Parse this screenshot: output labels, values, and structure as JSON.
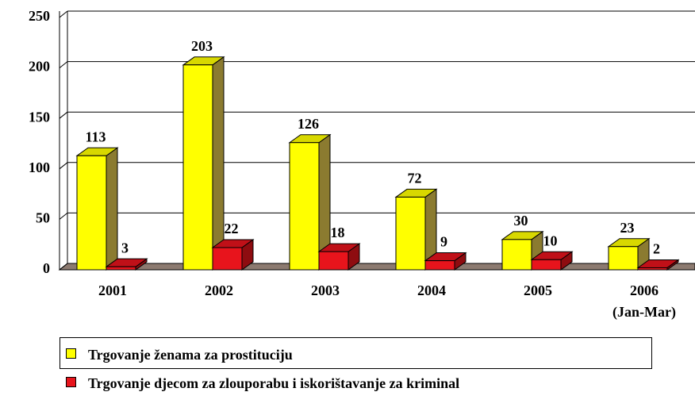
{
  "chart_data": {
    "type": "bar3d",
    "categories": [
      "2001",
      "2002",
      "2003",
      "2004",
      "2005",
      "2006 (Jan-Mar)"
    ],
    "series": [
      {
        "name": "Trgovanje ženama za prostituciju",
        "color": "#ffff00",
        "values": [
          113,
          203,
          126,
          72,
          30,
          23
        ]
      },
      {
        "name": "Trgovanje djecom za zlouporabu i iskorištavanje za kriminal",
        "color": "#e8141c",
        "values": [
          3,
          22,
          18,
          9,
          10,
          2
        ]
      }
    ],
    "ylim": [
      0,
      250
    ],
    "yticks": [
      0,
      50,
      100,
      150,
      200,
      250
    ],
    "grid": true
  }
}
